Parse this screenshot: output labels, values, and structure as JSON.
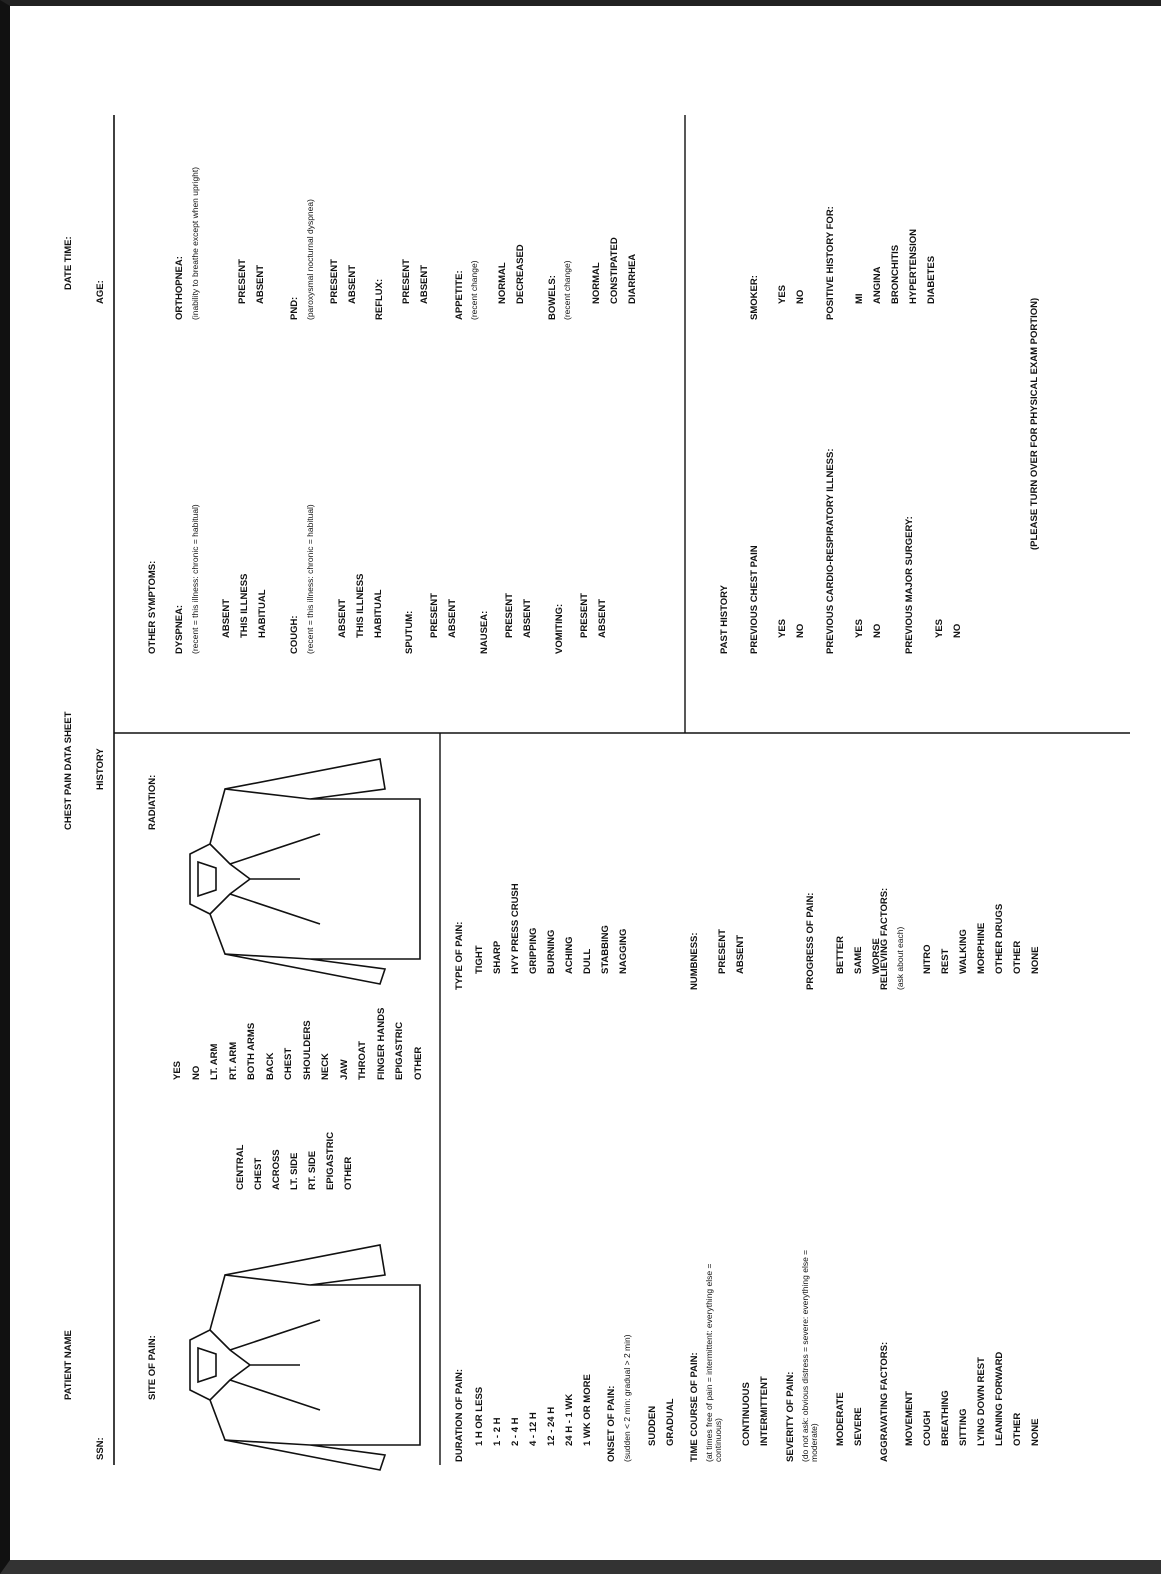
{
  "header": {
    "patient_name": "PATIENT NAME",
    "title": "CHEST PAIN DATA SHEET",
    "date_time": "DATE TIME:",
    "ssn": "SSN:",
    "section": "HISTORY",
    "age": "AGE:"
  },
  "site_of_pain": {
    "title": "SITE OF PAIN:",
    "options": [
      "CENTRAL",
      "CHEST",
      "ACROSS",
      "LT. SIDE",
      "RT. SIDE",
      "EPIGASTRIC",
      "OTHER"
    ]
  },
  "radiation": {
    "title": "RADIATION:",
    "options": [
      "YES",
      "NO",
      "LT. ARM",
      "RT. ARM",
      "BOTH ARMS",
      "BACK",
      "CHEST",
      "SHOULDERS",
      "NECK",
      "JAW",
      "THROAT",
      "FINGER HANDS",
      "EPIGASTRIC",
      "OTHER"
    ]
  },
  "duration_of_pain": {
    "title": "DURATION OF PAIN:",
    "options": [
      "1 H OR LESS",
      "1 - 2 H",
      "2 - 4 H",
      "4 - 12 H",
      "12 - 24 H",
      "24 H - 1 WK",
      "1 WK OR MORE"
    ]
  },
  "onset_of_pain": {
    "title": "ONSET OF PAIN:",
    "note": "(sudden < 2 min: gradual > 2 min)",
    "options": [
      "SUDDEN",
      "GRADUAL"
    ]
  },
  "time_course_of_pain": {
    "title": "TIME COURSE OF PAIN:",
    "note": "(at times free of pain = intermittent: everything else = continuous)",
    "options": [
      "CONTINUOUS",
      "INTERMITTENT"
    ]
  },
  "severity_of_pain": {
    "title": "SEVERITY OF PAIN:",
    "note": "(do not ask: obvious distress = severe: everything else = moderate)",
    "options": [
      "MODERATE",
      "SEVERE"
    ]
  },
  "aggravating_factors": {
    "title": "AGGRAVATING FACTORS:",
    "options": [
      "MOVEMENT",
      "COUGH",
      "BREATHING",
      "SITTING",
      "LYING DOWN REST",
      "LEANING FORWARD",
      "OTHER",
      "NONE"
    ]
  },
  "type_of_pain": {
    "title": "TYPE OF PAIN:",
    "options": [
      "TIGHT",
      "SHARP",
      "HVY PRESS CRUSH",
      "GRIPPING",
      "BURNING",
      "ACHING",
      "DULL",
      "STABBING",
      "NAGGING"
    ]
  },
  "numbness": {
    "title": "NUMBNESS:",
    "options": [
      "PRESENT",
      "ABSENT"
    ]
  },
  "progress_of_pain": {
    "title": "PROGRESS OF PAIN:",
    "options": [
      "BETTER",
      "SAME",
      "WORSE"
    ]
  },
  "relieving_factors": {
    "title": "RELIEVING FACTORS:",
    "note": "(ask about each)",
    "options": [
      "NITRO",
      "REST",
      "WALKING",
      "MORPHINE",
      "OTHER DRUGS",
      "OTHER",
      "NONE"
    ]
  },
  "other_symptoms": {
    "title": "OTHER SYMPTOMS:"
  },
  "dyspnea": {
    "title": "DYSPNEA:",
    "note": "(recent = this illness: chronic = habitual)",
    "options": [
      "ABSENT",
      "THIS ILLNESS",
      "HABITUAL"
    ]
  },
  "cough": {
    "title": "COUGH:",
    "note": "(recent = this illness: chronic = habitual)",
    "options": [
      "ABSENT",
      "THIS ILLNESS",
      "HABITUAL"
    ]
  },
  "sputum": {
    "title": "SPUTUM:",
    "options": [
      "PRESENT",
      "ABSENT"
    ]
  },
  "nausea": {
    "title": "NAUSEA:",
    "options": [
      "PRESENT",
      "ABSENT"
    ]
  },
  "vomiting": {
    "title": "VOMITING:",
    "options": [
      "PRESENT",
      "ABSENT"
    ]
  },
  "orthopnea": {
    "title": "ORTHOPNEA:",
    "note": "(inability to breathe except when upright)",
    "options": [
      "PRESENT",
      "ABSENT"
    ]
  },
  "pnd": {
    "title": "PND:",
    "note": "(paroxysmal nocturnal dyspnea)",
    "options": [
      "PRESENT",
      "ABSENT"
    ]
  },
  "reflux": {
    "title": "REFLUX:",
    "options": [
      "PRESENT",
      "ABSENT"
    ]
  },
  "appetite": {
    "title": "APPETITE:",
    "note": "(recent change)",
    "options": [
      "NORMAL",
      "DECREASED"
    ]
  },
  "bowels": {
    "title": "BOWELS:",
    "note": "(recent change)",
    "options": [
      "NORMAL",
      "CONSTIPATED",
      "DIARRHEA"
    ]
  },
  "past_history": {
    "title": "PAST HISTORY"
  },
  "previous_chest_pain": {
    "title": "PREVIOUS CHEST PAIN",
    "options": [
      "YES",
      "NO"
    ]
  },
  "previous_cardio_respiratory_illness": {
    "title": "PREVIOUS CARDIO-RESPIRATORY ILLNESS:",
    "options": [
      "YES",
      "NO"
    ]
  },
  "previous_major_surgery": {
    "title": "PREVIOUS MAJOR SURGERY:",
    "options": [
      "YES",
      "NO"
    ]
  },
  "smoker": {
    "title": "SMOKER:",
    "options": [
      "YES",
      "NO"
    ]
  },
  "positive_history_for": {
    "title": "POSITIVE HISTORY FOR:",
    "options": [
      "MI",
      "ANGINA",
      "BRONCHITIS",
      "HYPERTENSION",
      "DIABETES"
    ]
  },
  "footer_note": "(PLEASE TURN OVER FOR PHYSICAL EXAM PORTION)"
}
